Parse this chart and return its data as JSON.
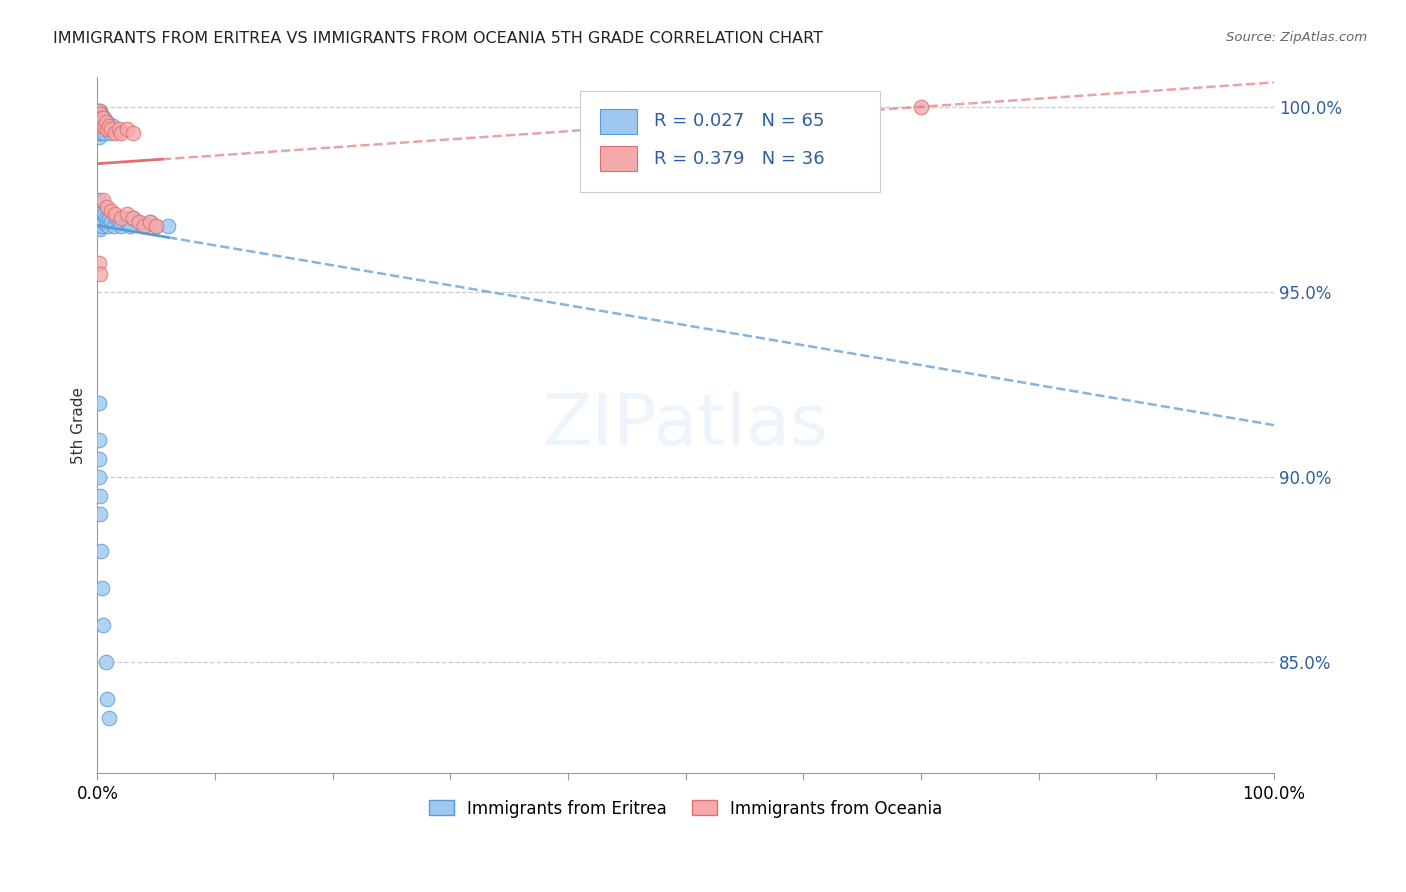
{
  "title": "IMMIGRANTS FROM ERITREA VS IMMIGRANTS FROM OCEANIA 5TH GRADE CORRELATION CHART",
  "source": "Source: ZipAtlas.com",
  "ylabel": "5th Grade",
  "ytick_labels": [
    "85.0%",
    "90.0%",
    "95.0%",
    "100.0%"
  ],
  "ytick_vals": [
    0.85,
    0.9,
    0.95,
    1.0
  ],
  "legend_eritrea_r": "0.027",
  "legend_eritrea_n": "65",
  "legend_oceania_r": "0.379",
  "legend_oceania_n": "36",
  "color_eritrea_fill": "#9EC8F0",
  "color_eritrea_edge": "#5B9BD5",
  "color_oceania_fill": "#F4AAAA",
  "color_oceania_edge": "#E07070",
  "color_eritrea_line": "#5B9BD5",
  "color_oceania_line": "#E07070",
  "color_text_blue": "#2E5FA3",
  "xlim": [
    0.0,
    1.0
  ],
  "ylim": [
    0.82,
    1.008
  ],
  "eritrea_x": [
    0.0003,
    0.0005,
    0.0006,
    0.0008,
    0.001,
    0.001,
    0.001,
    0.001,
    0.001,
    0.001,
    0.001,
    0.0015,
    0.0015,
    0.0015,
    0.002,
    0.002,
    0.002,
    0.002,
    0.0025,
    0.003,
    0.003,
    0.003,
    0.0035,
    0.004,
    0.004,
    0.005,
    0.005,
    0.006,
    0.006,
    0.007,
    0.008,
    0.009,
    0.01,
    0.011,
    0.012,
    0.013,
    0.0005,
    0.001,
    0.001,
    0.001,
    0.0015,
    0.002,
    0.0025,
    0.003,
    0.004,
    0.005,
    0.006,
    0.007,
    0.008,
    0.009,
    0.01,
    0.012,
    0.014,
    0.016,
    0.018,
    0.02,
    0.022,
    0.025,
    0.028,
    0.03,
    0.035,
    0.04,
    0.045,
    0.05,
    0.06
  ],
  "eritrea_y": [
    0.999,
    0.998,
    0.997,
    0.997,
    0.998,
    0.997,
    0.996,
    0.995,
    0.994,
    0.993,
    0.992,
    0.998,
    0.996,
    0.994,
    0.999,
    0.997,
    0.995,
    0.993,
    0.996,
    0.998,
    0.996,
    0.994,
    0.995,
    0.997,
    0.993,
    0.996,
    0.994,
    0.997,
    0.993,
    0.995,
    0.996,
    0.994,
    0.995,
    0.993,
    0.994,
    0.995,
    0.97,
    0.972,
    0.968,
    0.975,
    0.969,
    0.971,
    0.967,
    0.97,
    0.968,
    0.969,
    0.971,
    0.97,
    0.969,
    0.968,
    0.97,
    0.969,
    0.968,
    0.97,
    0.969,
    0.968,
    0.97,
    0.969,
    0.968,
    0.97,
    0.969,
    0.968,
    0.969,
    0.968,
    0.968
  ],
  "eritrea_y_outliers": [
    0.92,
    0.91,
    0.905,
    0.9,
    0.895,
    0.89,
    0.88,
    0.87,
    0.86,
    0.85,
    0.84,
    0.835
  ],
  "eritrea_x_outliers": [
    0.001,
    0.001,
    0.001,
    0.001,
    0.002,
    0.002,
    0.003,
    0.004,
    0.005,
    0.007,
    0.008,
    0.01
  ],
  "oceania_x": [
    0.0005,
    0.001,
    0.001,
    0.001,
    0.002,
    0.002,
    0.003,
    0.003,
    0.004,
    0.005,
    0.006,
    0.007,
    0.008,
    0.01,
    0.012,
    0.015,
    0.018,
    0.02,
    0.025,
    0.03,
    0.005,
    0.008,
    0.012,
    0.015,
    0.02,
    0.025,
    0.03,
    0.035,
    0.04,
    0.045,
    0.05,
    0.45,
    0.65,
    0.7,
    0.001,
    0.002
  ],
  "oceania_y": [
    0.998,
    0.999,
    0.997,
    0.996,
    0.998,
    0.996,
    0.997,
    0.995,
    0.996,
    0.997,
    0.995,
    0.996,
    0.994,
    0.995,
    0.994,
    0.993,
    0.994,
    0.993,
    0.994,
    0.993,
    0.975,
    0.973,
    0.972,
    0.971,
    0.97,
    0.971,
    0.97,
    0.969,
    0.968,
    0.969,
    0.968,
    1.0,
    1.0,
    1.0,
    0.958,
    0.955
  ]
}
